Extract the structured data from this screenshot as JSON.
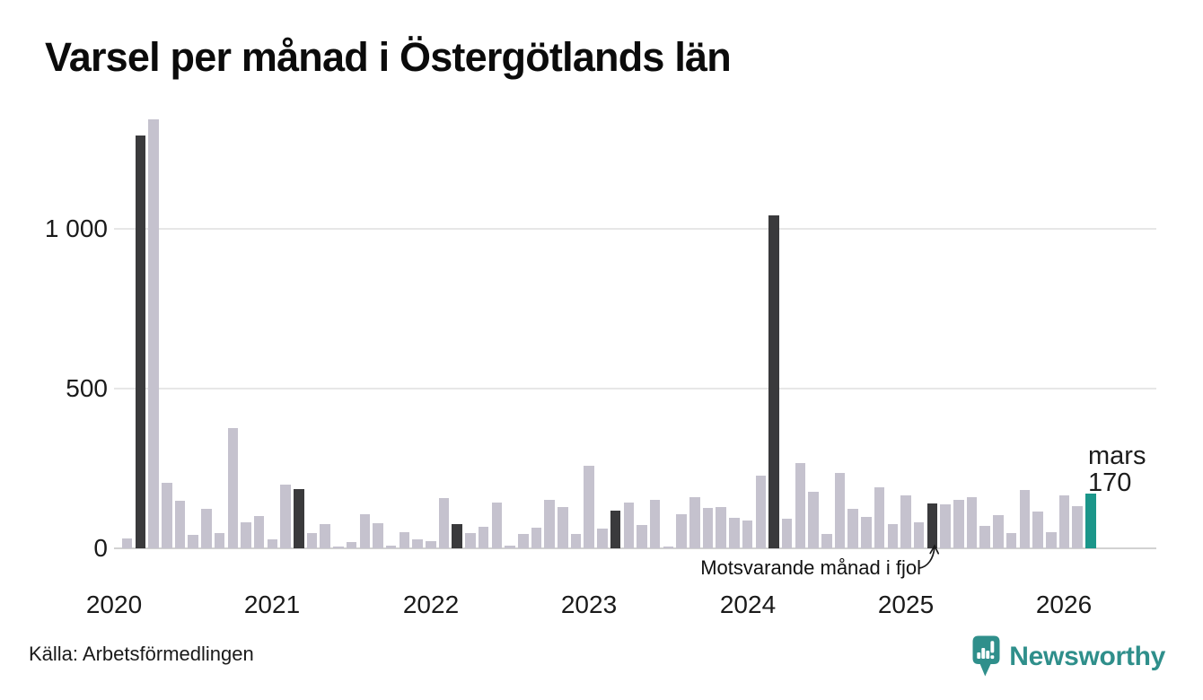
{
  "title": "Varsel per månad i Östergötlands län",
  "source": "Källa: Arbetsförmedlingen",
  "annotation": {
    "text": "Motsvarande månad i fjol"
  },
  "current_label": {
    "month": "mars",
    "value": "170"
  },
  "brand": {
    "name": "Newsworthy",
    "icon": "newsworthy-chart-bubble-icon"
  },
  "colors": {
    "bar": "#c5c2ce",
    "highlight": "#3a3a3c",
    "current": "#1b968a",
    "brand": "#2f8f8b",
    "gridline": "#e7e7e7",
    "axis_line": "#d2d2d2",
    "text": "#1a1a1a"
  },
  "y_axis": {
    "ticks": [
      {
        "label": "0",
        "value": 0
      },
      {
        "label": "500",
        "value": 500
      },
      {
        "label": "1 000",
        "value": 1000
      }
    ]
  },
  "x_axis": {
    "years": [
      "2020",
      "2021",
      "2022",
      "2023",
      "2024",
      "2025",
      "2026"
    ]
  },
  "chart_data": {
    "type": "bar",
    "title": "Varsel per månad i Östergötlands län",
    "xlabel": "",
    "ylabel": "",
    "ylim": [
      0,
      1400
    ],
    "grid": "horizontal",
    "months": [
      "2020-01",
      "2020-02",
      "2020-03",
      "2020-04",
      "2020-05",
      "2020-06",
      "2020-07",
      "2020-08",
      "2020-09",
      "2020-10",
      "2020-11",
      "2020-12",
      "2021-01",
      "2021-02",
      "2021-03",
      "2021-04",
      "2021-05",
      "2021-06",
      "2021-07",
      "2021-08",
      "2021-09",
      "2021-10",
      "2021-11",
      "2021-12",
      "2022-01",
      "2022-02",
      "2022-03",
      "2022-04",
      "2022-05",
      "2022-06",
      "2022-07",
      "2022-08",
      "2022-09",
      "2022-10",
      "2022-11",
      "2022-12",
      "2023-01",
      "2023-02",
      "2023-03",
      "2023-04",
      "2023-05",
      "2023-06",
      "2023-07",
      "2023-08",
      "2023-09",
      "2023-10",
      "2023-11",
      "2023-12",
      "2024-01",
      "2024-02",
      "2024-03",
      "2024-04",
      "2024-05",
      "2024-06",
      "2024-07",
      "2024-08",
      "2024-09",
      "2024-10",
      "2024-11",
      "2024-12",
      "2025-01",
      "2025-02",
      "2025-03",
      "2025-04",
      "2025-05",
      "2025-06",
      "2025-07",
      "2025-08",
      "2025-09",
      "2025-10",
      "2025-11",
      "2025-12",
      "2026-01",
      "2026-02",
      "2026-03"
    ],
    "values": [
      0,
      30,
      1290,
      1340,
      205,
      150,
      43,
      123,
      48,
      377,
      82,
      101,
      27,
      199,
      185,
      48,
      75,
      6,
      20,
      108,
      78,
      9,
      50,
      29,
      23,
      157,
      76,
      48,
      67,
      143,
      9,
      45,
      65,
      153,
      129,
      45,
      258,
      61,
      118,
      143,
      73,
      153,
      6,
      106,
      159,
      126,
      129,
      95,
      87,
      227,
      1040,
      92,
      267,
      178,
      45,
      235,
      124,
      99,
      190,
      76,
      165,
      81,
      140,
      137,
      153,
      159,
      70,
      103,
      47,
      183,
      115,
      51,
      165,
      132,
      170
    ],
    "highlight_indices": [
      2,
      14,
      26,
      38,
      50,
      62
    ],
    "highlight_label": "Motsvarande månad i fjol",
    "current_index": 74,
    "current_point_label": "mars 170"
  }
}
